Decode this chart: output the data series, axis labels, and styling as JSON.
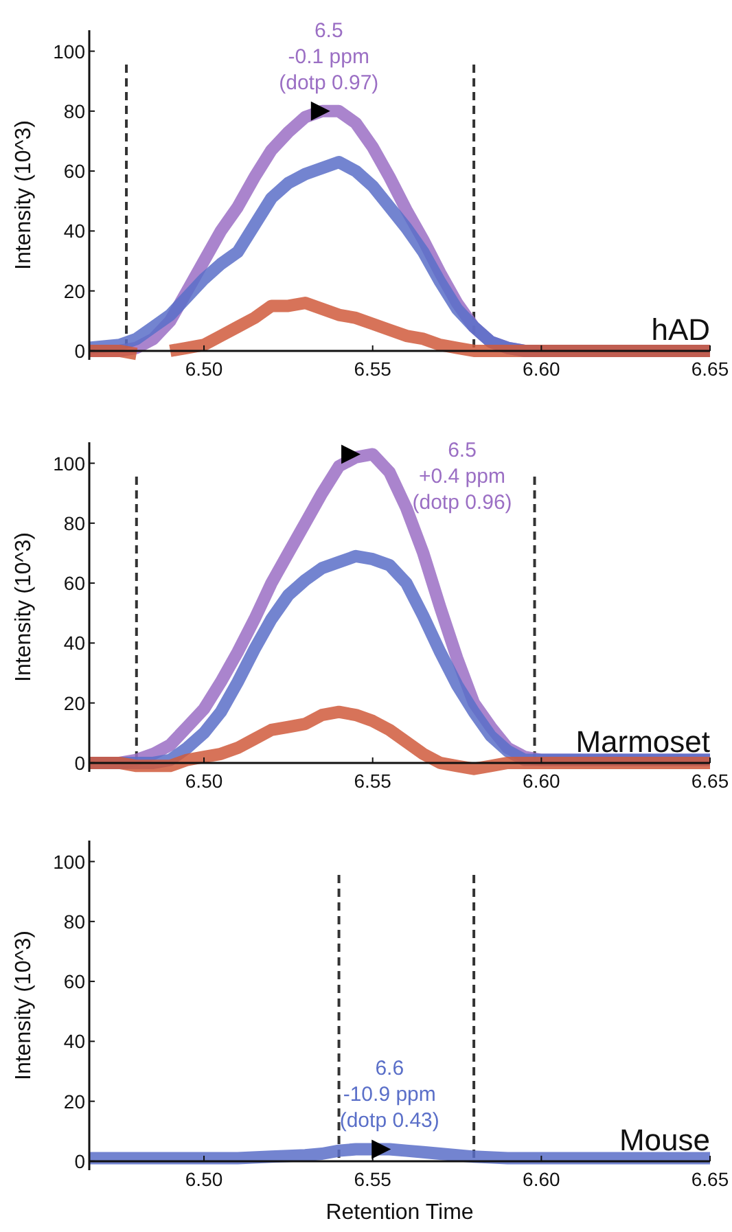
{
  "chart_data": [
    {
      "type": "line",
      "title": "hAD",
      "ylabel": "Intensity (10^3)",
      "xlim": [
        6.466,
        6.65
      ],
      "ylim": [
        -3,
        107
      ],
      "xticks": [
        {
          "value": 6.5,
          "label": "6.50"
        },
        {
          "value": 6.55,
          "label": "6.55"
        },
        {
          "value": 6.6,
          "label": "6.60"
        },
        {
          "value": 6.65,
          "label": "6.65"
        }
      ],
      "yticks": [
        0,
        20,
        40,
        60,
        80,
        100
      ],
      "x": [
        6.466,
        6.475,
        6.48,
        6.485,
        6.49,
        6.495,
        6.5,
        6.505,
        6.51,
        6.515,
        6.52,
        6.525,
        6.53,
        6.535,
        6.54,
        6.545,
        6.55,
        6.555,
        6.56,
        6.565,
        6.57,
        6.575,
        6.58,
        6.585,
        6.59,
        6.595,
        6.6,
        6.65
      ],
      "series": [
        {
          "color": "#9b6fc4",
          "values": [
            0,
            0,
            1,
            4,
            10,
            20,
            30,
            40,
            48,
            58,
            67,
            73,
            78,
            80,
            80,
            76,
            68,
            58,
            47,
            37,
            26,
            16,
            8,
            3,
            1,
            0,
            0,
            0
          ]
        },
        {
          "color": "#5a6fc8",
          "values": [
            1,
            2,
            4,
            8,
            12,
            18,
            24,
            29,
            33,
            42,
            51,
            56,
            59,
            61,
            63,
            60,
            55,
            48,
            41,
            33,
            23,
            14,
            8,
            3,
            1,
            0,
            0,
            0
          ]
        },
        {
          "color": "#d05a3c",
          "values": [
            0,
            0,
            -1,
            null,
            0,
            1,
            2,
            5,
            8,
            11,
            15,
            15,
            16,
            14,
            12,
            11,
            9,
            7,
            5,
            4,
            2,
            1,
            0,
            0,
            0,
            0,
            0,
            0
          ]
        }
      ],
      "ref_lines": [
        {
          "axis": "x",
          "value": 6.477,
          "color": "#333333",
          "line_style": "dashed"
        },
        {
          "axis": "x",
          "value": 6.58,
          "color": "#333333",
          "line_style": "dashed"
        }
      ],
      "annotations": [
        {
          "text": "6.5\n-0.1 ppm\n(dotp 0.97)",
          "x": 6.537,
          "y": 80
        }
      ]
    },
    {
      "type": "line",
      "title": "Marmoset",
      "ylabel": "Intensity (10^3)",
      "xlim": [
        6.466,
        6.65
      ],
      "ylim": [
        -3,
        107
      ],
      "xticks": [
        {
          "value": 6.5,
          "label": "6.50"
        },
        {
          "value": 6.55,
          "label": "6.55"
        },
        {
          "value": 6.6,
          "label": "6.60"
        },
        {
          "value": 6.65,
          "label": "6.65"
        }
      ],
      "yticks": [
        0,
        20,
        40,
        60,
        80,
        100
      ],
      "x": [
        6.466,
        6.475,
        6.48,
        6.485,
        6.49,
        6.495,
        6.5,
        6.505,
        6.51,
        6.515,
        6.52,
        6.525,
        6.53,
        6.535,
        6.54,
        6.545,
        6.55,
        6.555,
        6.56,
        6.565,
        6.57,
        6.575,
        6.58,
        6.585,
        6.59,
        6.595,
        6.6,
        6.65
      ],
      "series": [
        {
          "color": "#9b6fc4",
          "values": [
            0,
            0,
            1,
            3,
            6,
            12,
            18,
            27,
            37,
            48,
            60,
            70,
            80,
            90,
            99,
            102,
            103,
            97,
            85,
            70,
            52,
            35,
            20,
            12,
            5,
            2,
            1,
            1
          ]
        },
        {
          "color": "#5a6fc8",
          "values": [
            0,
            0,
            0,
            0,
            1,
            5,
            10,
            17,
            27,
            38,
            48,
            56,
            61,
            65,
            67,
            69,
            68,
            66,
            60,
            49,
            37,
            26,
            17,
            9,
            4,
            1,
            1,
            1
          ]
        },
        {
          "color": "#d05a3c",
          "values": [
            0,
            0,
            -1,
            -1,
            -1,
            1,
            2,
            3,
            5,
            8,
            11,
            12,
            13,
            16,
            17,
            16,
            14,
            11,
            7,
            3,
            0,
            -1,
            -2,
            -1,
            0,
            0,
            0,
            0
          ]
        }
      ],
      "ref_lines": [
        {
          "axis": "x",
          "value": 6.48,
          "color": "#333333",
          "line_style": "dashed"
        },
        {
          "axis": "x",
          "value": 6.598,
          "color": "#333333",
          "line_style": "dashed"
        }
      ],
      "annotations": [
        {
          "text": "6.5\n+0.4 ppm\n(dotp 0.96)",
          "x": 6.546,
          "y": 103
        }
      ]
    },
    {
      "type": "line",
      "title": "Mouse",
      "ylabel": "Intensity (10^3)",
      "xlabel": "Retention Time",
      "xlim": [
        6.466,
        6.65
      ],
      "ylim": [
        -3,
        107
      ],
      "xticks": [
        {
          "value": 6.5,
          "label": "6.50"
        },
        {
          "value": 6.55,
          "label": "6.55"
        },
        {
          "value": 6.6,
          "label": "6.60"
        },
        {
          "value": 6.65,
          "label": "6.65"
        }
      ],
      "yticks": [
        0,
        20,
        40,
        60,
        80,
        100
      ],
      "x": [
        6.466,
        6.48,
        6.5,
        6.51,
        6.52,
        6.53,
        6.535,
        6.54,
        6.545,
        6.55,
        6.555,
        6.56,
        6.565,
        6.57,
        6.58,
        6.59,
        6.6,
        6.65
      ],
      "series": [
        {
          "color": "#5a6fc8",
          "values": [
            1,
            1,
            1,
            1,
            1.5,
            2,
            2.5,
            3.5,
            4,
            4,
            4,
            3.5,
            3,
            2.5,
            1.5,
            1,
            1,
            1
          ]
        }
      ],
      "ref_lines": [
        {
          "axis": "x",
          "value": 6.54,
          "color": "#333333",
          "line_style": "dashed"
        },
        {
          "axis": "x",
          "value": 6.58,
          "color": "#333333",
          "line_style": "dashed"
        }
      ],
      "annotations": [
        {
          "text": "6.6\n-10.9 ppm\n(dotp 0.43)",
          "x": 6.555,
          "y": 4
        }
      ]
    }
  ]
}
